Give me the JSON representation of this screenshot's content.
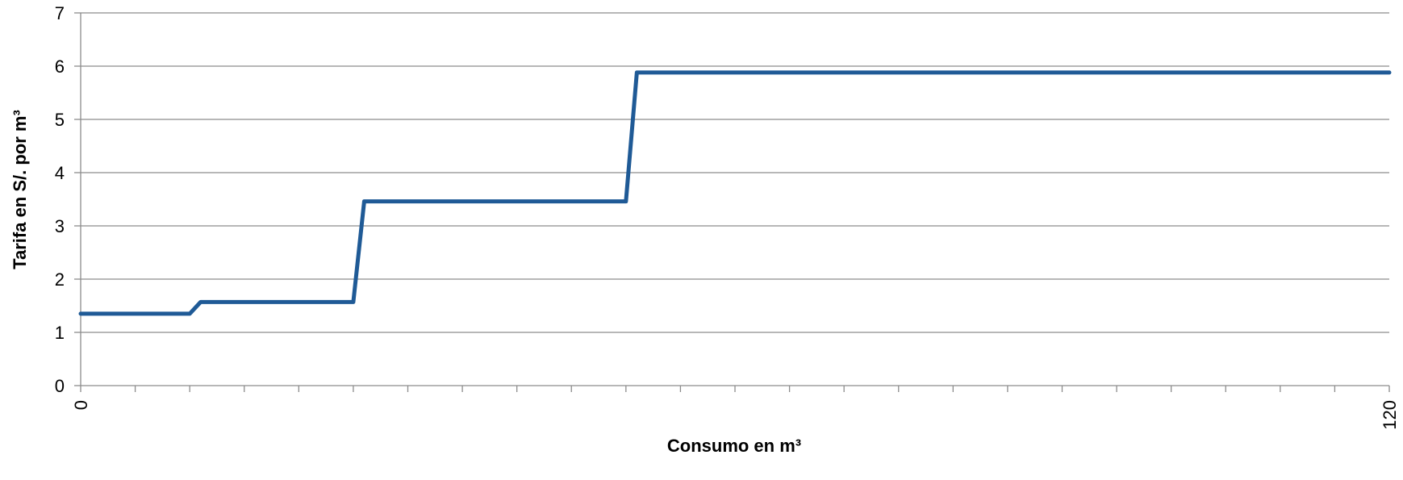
{
  "chart_data": {
    "type": "line",
    "title": "",
    "xlabel": "Consumo en m³",
    "ylabel": "Tarifa en S/. por m³",
    "xlim": [
      0,
      120
    ],
    "ylim": [
      0,
      7
    ],
    "yticks": [
      "0",
      "1",
      "2",
      "3",
      "4",
      "5",
      "6",
      "7"
    ],
    "xtick_labels": [
      {
        "x": 0,
        "label": "0"
      },
      {
        "x": 120,
        "label": "120"
      }
    ],
    "x_minor_tick_count": 24,
    "grid": true,
    "legend": "none",
    "series": [
      {
        "color": "#1F5A96",
        "points": [
          [
            0,
            1.35
          ],
          [
            10,
            1.35
          ],
          [
            11,
            1.57
          ],
          [
            25,
            1.57
          ],
          [
            26,
            3.46
          ],
          [
            50,
            3.46
          ],
          [
            51,
            5.88
          ],
          [
            120,
            5.88
          ]
        ]
      }
    ]
  },
  "colors": {
    "line": "#1F5A96",
    "grid": "#8C8C8C",
    "axis": "#8C8C8C"
  }
}
